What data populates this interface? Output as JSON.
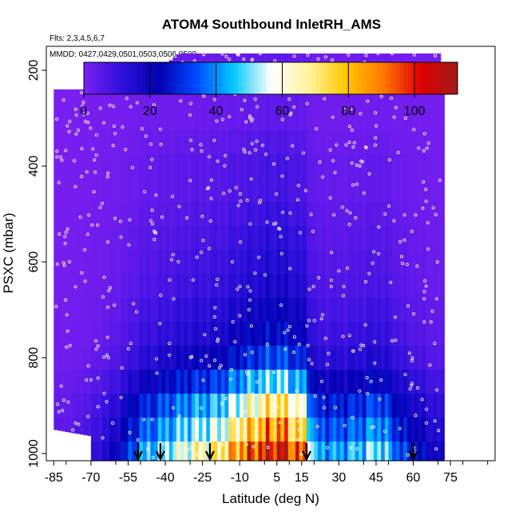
{
  "chart_data": {
    "type": "heatmap",
    "title": "ATOM4 Southbound InletRH_AMS",
    "subtitle_flights": "Flts: 2,3,4,5,6,7",
    "subtitle_dates": "MMDD: 0427,0429,0501,0503,0506,0509",
    "xlabel": "Latitude (deg N)",
    "ylabel": "PSXC (mbar)",
    "xlim": [
      -88,
      93
    ],
    "ylim": [
      1015,
      150
    ],
    "x_ticks": [
      -85,
      -70,
      -55,
      -40,
      -25,
      -10,
      5,
      15,
      30,
      45,
      60,
      75
    ],
    "x_tick_labels": [
      "-85",
      "-70",
      "-55",
      "-40",
      "-25",
      "-10",
      "5",
      "15",
      "30",
      "45",
      "60",
      "75"
    ],
    "y_ticks": [
      200,
      400,
      600,
      800,
      1000
    ],
    "y_tick_labels": [
      "200",
      "400",
      "600",
      "800",
      "1000"
    ],
    "colorbar": {
      "min": 0,
      "max": 113,
      "ticks": [
        0,
        20,
        40,
        60,
        80,
        100
      ],
      "tick_labels": [
        "0",
        "20",
        "40",
        "60",
        "80",
        "100"
      ],
      "colors": [
        "#7a1ff0",
        "#3010dd",
        "#0000b0",
        "#0048ff",
        "#00c8ff",
        "#ffffff",
        "#fff4a0",
        "#ffc800",
        "#ff7a00",
        "#e00000",
        "#a01a1a"
      ]
    },
    "arrows_lat": [
      -51,
      -42,
      -22,
      17,
      60
    ],
    "pressure_levels": [
      205,
      250,
      300,
      350,
      400,
      450,
      500,
      550,
      600,
      650,
      700,
      750,
      800,
      850,
      900,
      950,
      1000
    ],
    "rh_profile_by_level": [
      2,
      2,
      2,
      3,
      4,
      4,
      5,
      6,
      7,
      8,
      10,
      12,
      16,
      24,
      34,
      42,
      52
    ],
    "rh_enhancement_by_lat": [
      {
        "lat": -80,
        "factor": 0.1
      },
      {
        "lat": -70,
        "factor": 0.2
      },
      {
        "lat": -60,
        "factor": 0.4
      },
      {
        "lat": -50,
        "factor": 0.8
      },
      {
        "lat": -40,
        "factor": 1.0
      },
      {
        "lat": -30,
        "factor": 1.2
      },
      {
        "lat": -20,
        "factor": 1.3
      },
      {
        "lat": -10,
        "factor": 1.7
      },
      {
        "lat": 0,
        "factor": 2.0
      },
      {
        "lat": 5,
        "factor": 2.1
      },
      {
        "lat": 10,
        "factor": 1.9
      },
      {
        "lat": 15,
        "factor": 1.7
      },
      {
        "lat": 20,
        "factor": 0.8
      },
      {
        "lat": 30,
        "factor": 0.8
      },
      {
        "lat": 40,
        "factor": 0.9
      },
      {
        "lat": 45,
        "factor": 1.0
      },
      {
        "lat": 55,
        "factor": 0.6
      },
      {
        "lat": 65,
        "factor": 0.4
      },
      {
        "lat": 72,
        "factor": 0.3
      }
    ],
    "coverage": [
      {
        "lat": -85,
        "top_p": 240
      },
      {
        "lat": -75,
        "top_p": 240
      },
      {
        "lat": -65,
        "top_p": 240
      },
      {
        "lat": -55,
        "top_p": 220
      },
      {
        "lat": -45,
        "top_p": 205
      },
      {
        "lat": -35,
        "top_p": 165
      },
      {
        "lat": 70,
        "top_p": 165
      },
      {
        "lat": 72,
        "top_p": 250
      }
    ]
  }
}
